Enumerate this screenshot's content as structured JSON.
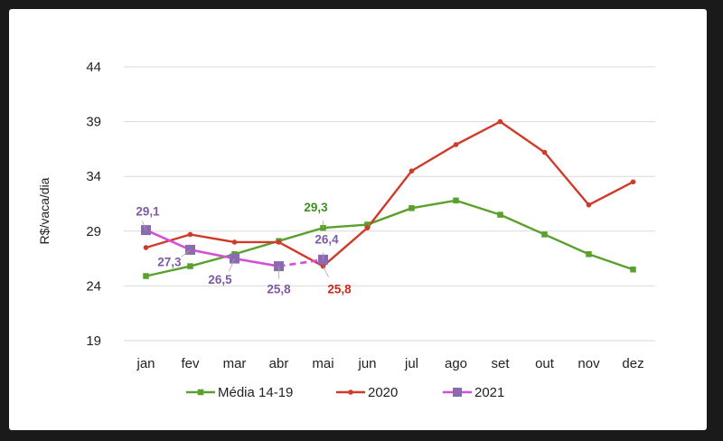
{
  "chart_data": {
    "type": "line",
    "title": "",
    "xlabel": "",
    "ylabel": "R$/vaca/dia",
    "categories": [
      "jan",
      "fev",
      "mar",
      "abr",
      "mai",
      "jun",
      "jul",
      "ago",
      "set",
      "out",
      "nov",
      "dez"
    ],
    "yticks": [
      "19",
      "24",
      "29",
      "34",
      "39",
      "44"
    ],
    "ylim": [
      19,
      44
    ],
    "grid": true,
    "legend_position": "bottom",
    "series": [
      {
        "name": "Média 14-19",
        "color": "#5aa02c",
        "marker": "square",
        "values": [
          24.9,
          25.8,
          26.9,
          28.1,
          29.3,
          29.6,
          31.1,
          31.8,
          30.5,
          28.7,
          26.9,
          25.5
        ]
      },
      {
        "name": "2020",
        "color": "#d03a2a",
        "marker": "circle",
        "values": [
          27.5,
          28.7,
          28.0,
          28.0,
          25.8,
          29.3,
          34.5,
          36.9,
          39.0,
          36.2,
          31.4,
          33.5
        ]
      },
      {
        "name": "2021",
        "color": "#d24fd6",
        "marker_color": "#8b6bb0",
        "marker": "square",
        "values": [
          29.1,
          27.3,
          26.5,
          25.8,
          26.4,
          null,
          null,
          null,
          null,
          null,
          null,
          null
        ],
        "dashed_from_index": 3
      }
    ],
    "data_labels": [
      {
        "series": 2,
        "index": 0,
        "text": "29,1",
        "color": "#7d5aa6"
      },
      {
        "series": 2,
        "index": 1,
        "text": "27,3",
        "color": "#7d5aa6"
      },
      {
        "series": 2,
        "index": 2,
        "text": "26,5",
        "color": "#7d5aa6"
      },
      {
        "series": 2,
        "index": 3,
        "text": "25,8",
        "color": "#7d5aa6"
      },
      {
        "series": 2,
        "index": 4,
        "text": "26,4",
        "color": "#7d5aa6"
      },
      {
        "series": 0,
        "index": 4,
        "text": "29,3",
        "color": "#3f8f1f"
      },
      {
        "series": 1,
        "index": 4,
        "text": "25,8",
        "color": "#cc2a1a"
      }
    ]
  }
}
